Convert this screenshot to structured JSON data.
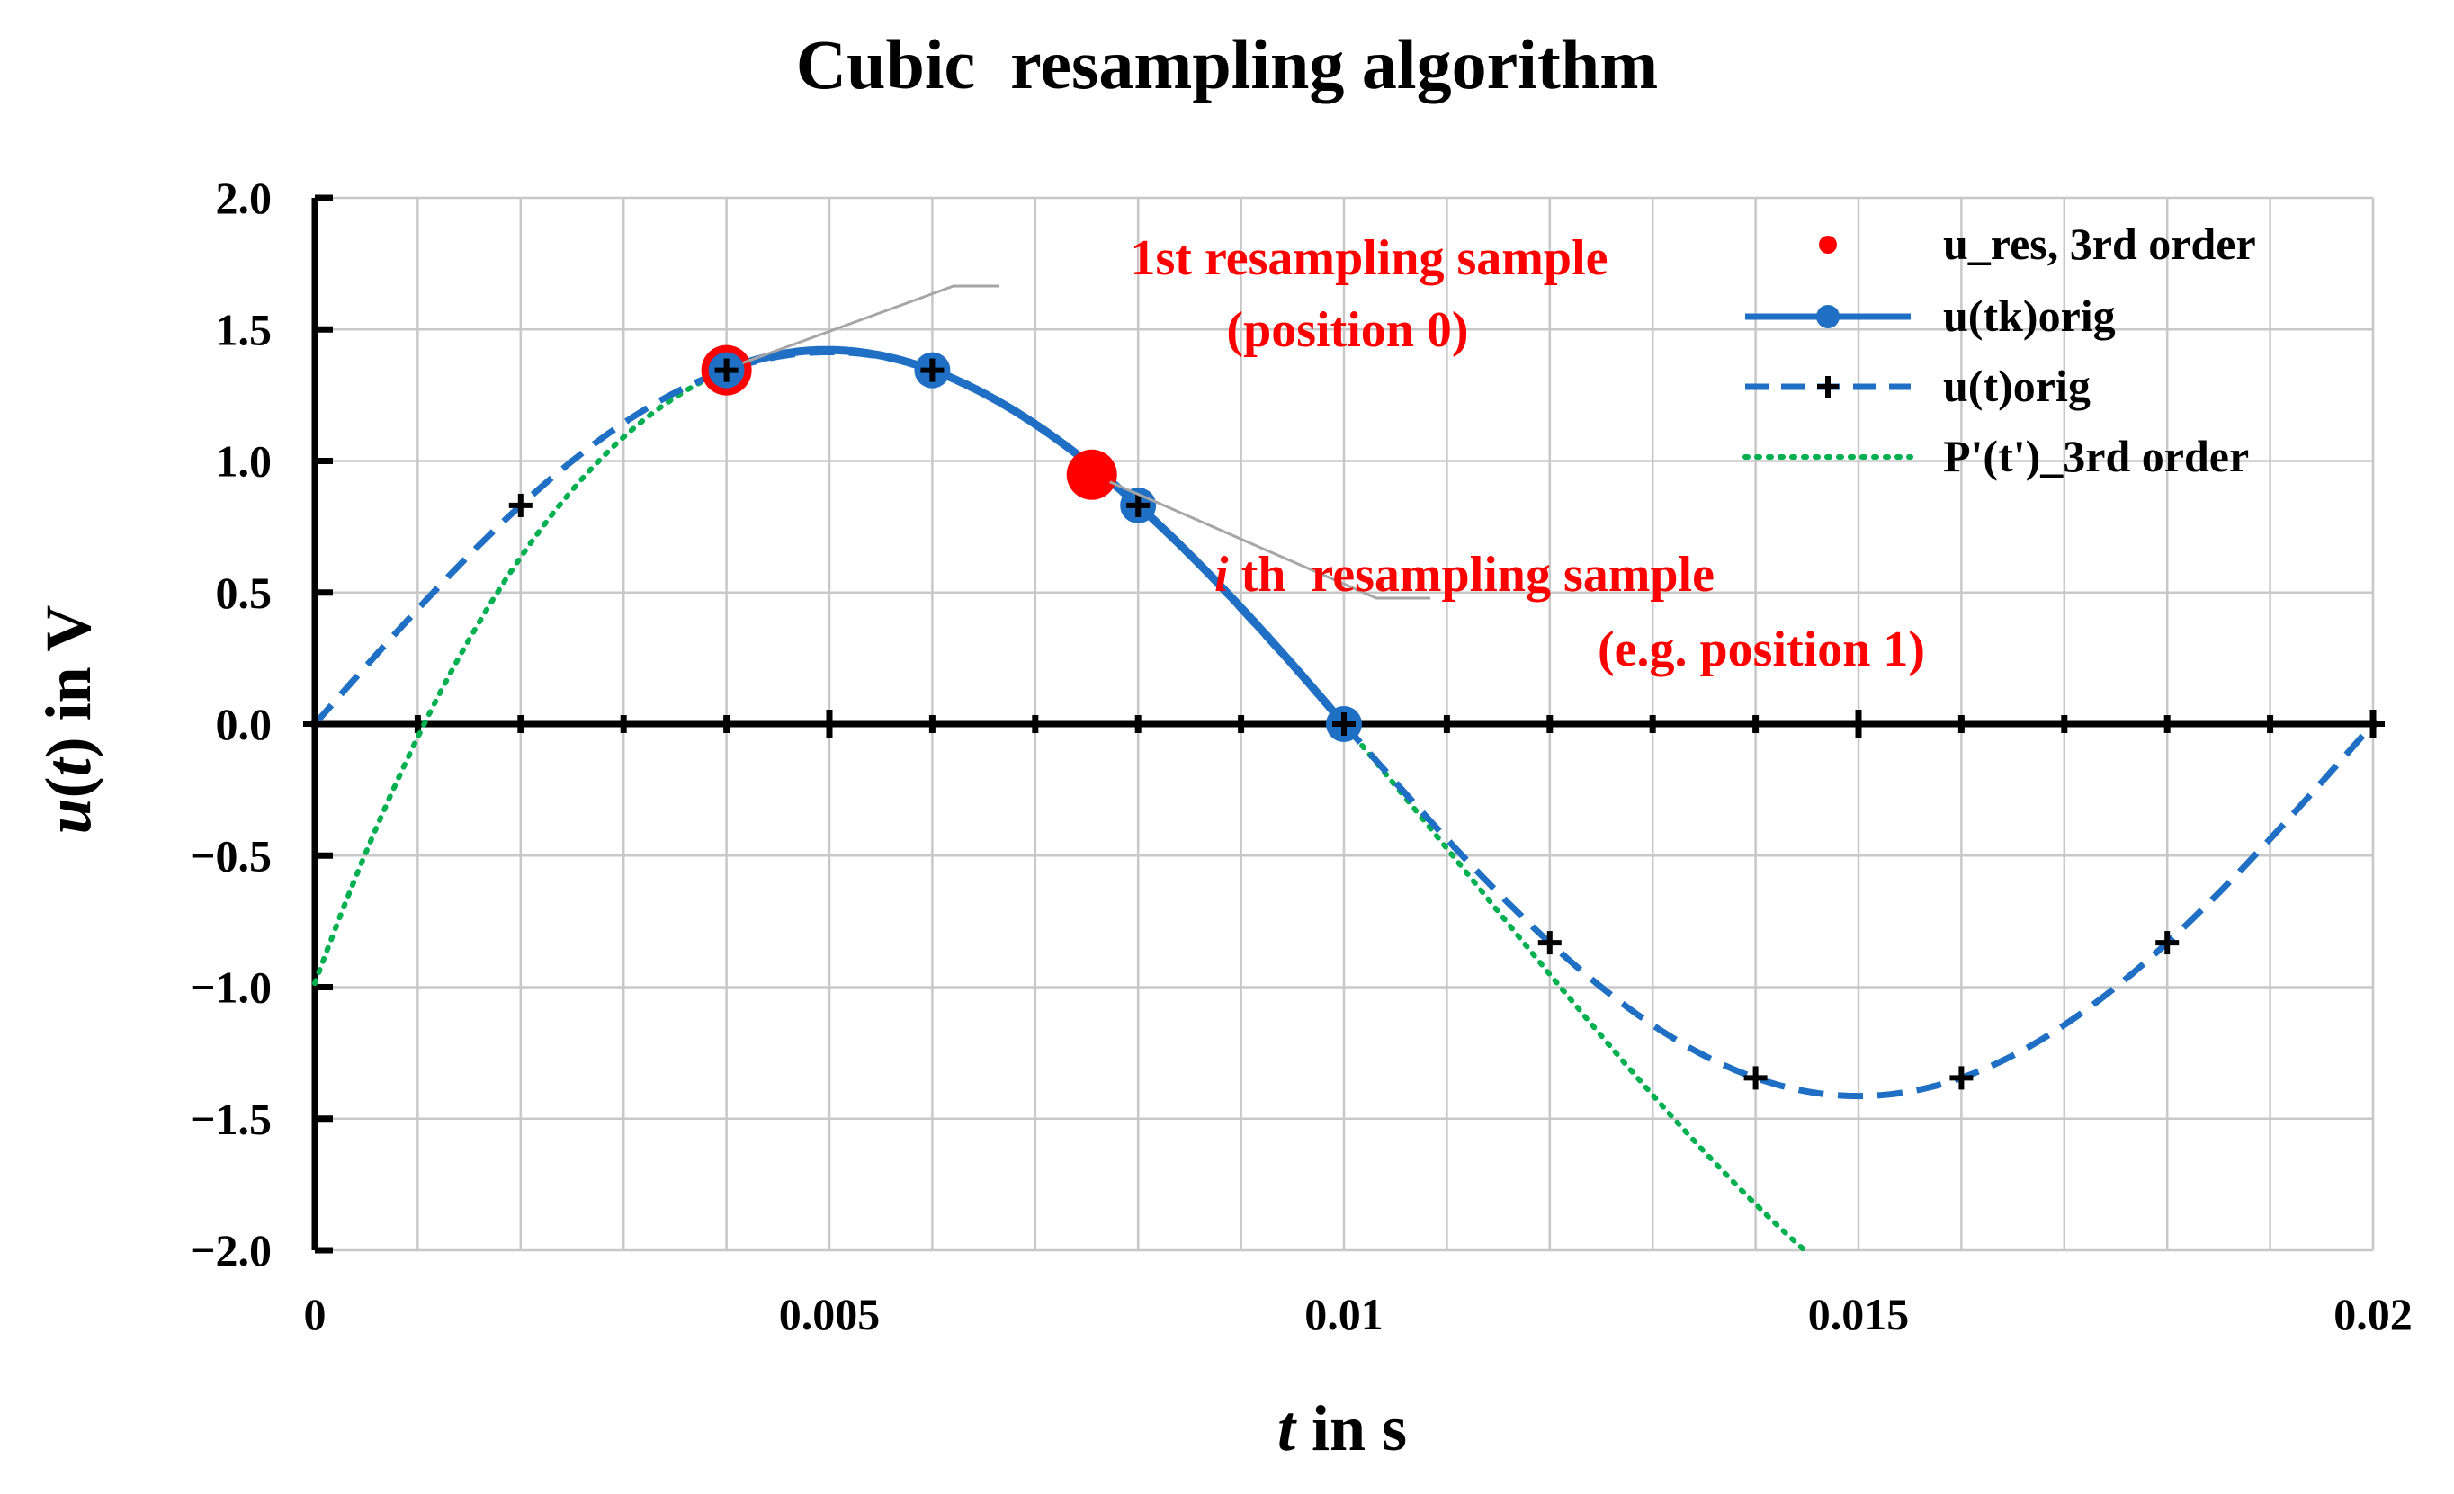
{
  "chart_data": {
    "type": "line",
    "title": "Cubic  resampling algorithm",
    "xlabel": {
      "var": "t",
      "rest": " in s"
    },
    "ylabel": {
      "var": "u",
      "paren_open": "(",
      "paren_var": "t",
      "paren_close": ")",
      "rest": " in V"
    },
    "xlim": [
      0,
      0.02
    ],
    "ylim": [
      -2.0,
      2.0
    ],
    "x_ticks": [
      0,
      0.005,
      0.01,
      0.015,
      0.02
    ],
    "x_tick_labels": [
      "0",
      "0.005",
      "0.01",
      "0.015",
      "0.02"
    ],
    "y_ticks": [
      2.0,
      1.5,
      1.0,
      0.5,
      0.0,
      -0.5,
      -1.0,
      -1.5,
      -2.0
    ],
    "y_tick_labels": [
      "2.0",
      "1.5",
      "1.0",
      "0.5",
      "0.0",
      "−0.5",
      "−1.0",
      "−1.5",
      "−2.0"
    ],
    "grid": true,
    "grid_step_x": 0.001,
    "grid_step_y": 0.5,
    "legend_position": "top-right",
    "series": [
      {
        "name": "u_res, 3rd order",
        "style": "markers",
        "color": "#ff0000",
        "x": [
          0.004,
          0.00755
        ],
        "y": [
          1.345,
          0.948
        ]
      },
      {
        "name": "u(tk)orig",
        "style": "solid-line-circles",
        "color": "#1f6fc4",
        "x": [
          0.004,
          0.006,
          0.008,
          0.01
        ],
        "y": [
          1.345,
          1.345,
          0.831,
          0.0
        ]
      },
      {
        "name": "u(t)orig",
        "style": "dashed-line-plus",
        "color": "#1f6fc4",
        "function": "1.414*sin(2*pi*50*t)",
        "x": [
          0,
          0.002,
          0.004,
          0.006,
          0.008,
          0.01,
          0.012,
          0.014,
          0.016,
          0.018,
          0.02
        ],
        "y": [
          0,
          0.831,
          1.345,
          1.345,
          0.831,
          0,
          -0.831,
          -1.345,
          -1.345,
          -0.831,
          0
        ]
      },
      {
        "name": "P'(t')_3rd order",
        "style": "dotted-line",
        "color": "#00b050",
        "function": "cubic through u(tk)orig points",
        "x": [
          0.004,
          0.006,
          0.008,
          0.01
        ],
        "y": [
          1.345,
          1.345,
          0.831,
          0.0
        ]
      }
    ],
    "annotations": [
      {
        "line1": "1st resampling sample",
        "line2": "(position 0)",
        "points_to": [
          0.004,
          1.345
        ]
      },
      {
        "line1_italic": "i",
        "line1_rest": " th  resampling sample",
        "line2": "(e.g. position 1)",
        "points_to": [
          0.00755,
          0.948
        ]
      }
    ]
  }
}
